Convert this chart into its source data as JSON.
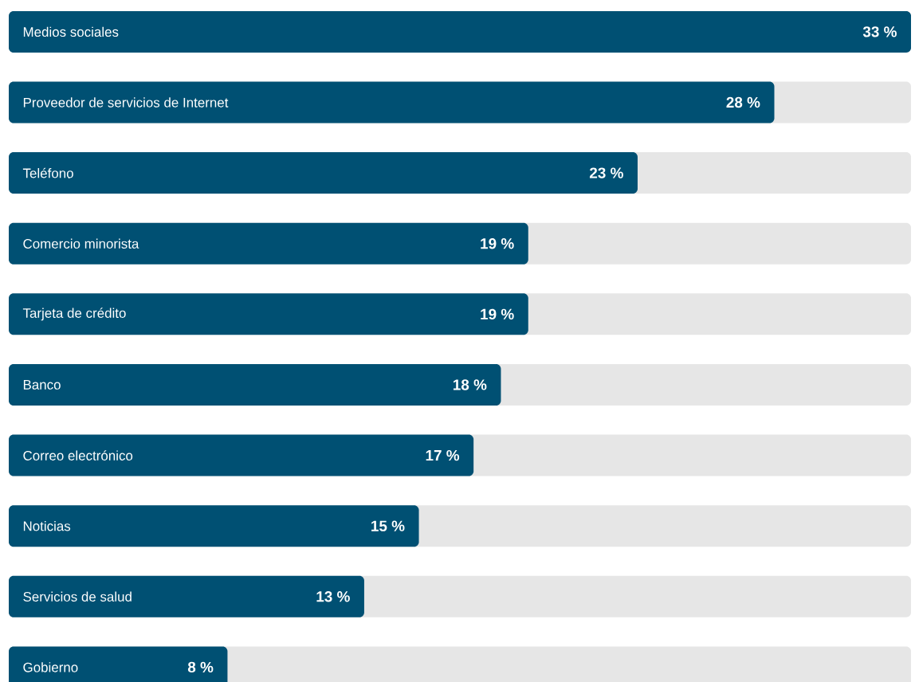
{
  "chart_data": {
    "type": "bar",
    "orientation": "horizontal",
    "tick_labels": "y",
    "categories": [
      "Medios sociales",
      "Proveedor de servicios de Internet",
      "Teléfono",
      "Comercio minorista",
      "Tarjeta de crédito",
      "Banco",
      "Correo electrónico",
      "Noticias",
      "Servicios de salud",
      "Gobierno"
    ],
    "values": [
      33,
      28,
      23,
      19,
      19,
      18,
      17,
      15,
      13,
      8
    ],
    "value_labels": [
      "33 %",
      "28 %",
      "23 %",
      "19 %",
      "19 %",
      "18 %",
      "17 %",
      "15 %",
      "13 %",
      "8 %"
    ],
    "color": "#005073",
    "xlim": [
      0,
      33
    ]
  }
}
